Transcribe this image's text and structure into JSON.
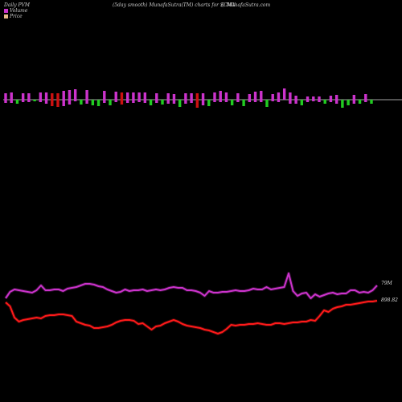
{
  "header": {
    "left": "Daily PVM",
    "center": "(5day smooth) MunafaSutra(TM) charts for SCMX",
    "right": "() MunafaSutra.com"
  },
  "legend": {
    "volume_label": "Volume",
    "price_label": "Price"
  },
  "colors": {
    "background": "#000000",
    "volume_legend": "#cc33cc",
    "price_legend": "#e6b98a",
    "bar_up": "#cc33cc",
    "bar_down": "#cc1111",
    "bar_green": "#22cc22",
    "volume_line": "#cc33cc",
    "price_line": "#ff1a1a",
    "baseline": "#dddddd"
  },
  "chart_data": {
    "type": "line",
    "end_labels": {
      "volume": "79M",
      "price": "898.82"
    },
    "bars": {
      "colors": [
        "m",
        "m",
        "g",
        "m",
        "m",
        "g",
        "m",
        "m",
        "r",
        "r",
        "m",
        "m",
        "m",
        "g",
        "m",
        "g",
        "g",
        "m",
        "g",
        "m",
        "r",
        "m",
        "m",
        "m",
        "m",
        "g",
        "m",
        "g",
        "m",
        "m",
        "g",
        "m",
        "m",
        "r",
        "m",
        "g",
        "m",
        "m",
        "m",
        "g",
        "m",
        "g",
        "m",
        "m",
        "m",
        "g",
        "m",
        "m",
        "m",
        "m",
        "m",
        "g",
        "m",
        "m",
        "m",
        "g",
        "m",
        "m",
        "g",
        "g",
        "m",
        "g",
        "m",
        "g"
      ],
      "up": [
        8,
        9,
        0,
        8,
        8,
        0,
        9,
        9,
        8,
        8,
        11,
        12,
        13,
        0,
        12,
        0,
        0,
        11,
        0,
        10,
        9,
        9,
        9,
        9,
        9,
        0,
        8,
        0,
        8,
        7,
        0,
        8,
        8,
        8,
        8,
        0,
        9,
        11,
        9,
        0,
        8,
        0,
        7,
        10,
        11,
        0,
        7,
        9,
        14,
        9,
        5,
        0,
        4,
        4,
        4,
        0,
        5,
        6,
        0,
        0,
        6,
        0,
        7,
        0
      ],
      "down": [
        4,
        4,
        5,
        3,
        3,
        2,
        3,
        5,
        8,
        9,
        8,
        6,
        2,
        6,
        5,
        7,
        8,
        4,
        7,
        3,
        6,
        4,
        4,
        3,
        4,
        7,
        4,
        6,
        5,
        5,
        9,
        5,
        4,
        10,
        7,
        8,
        3,
        3,
        3,
        7,
        3,
        8,
        3,
        3,
        3,
        9,
        2,
        3,
        0,
        5,
        5,
        7,
        3,
        2,
        3,
        5,
        3,
        5,
        10,
        7,
        5,
        5,
        3,
        5
      ]
    },
    "volume_line": [
      371,
      363,
      360,
      361,
      362,
      363,
      364,
      361,
      355,
      361,
      361,
      360,
      360,
      362,
      359,
      358,
      357,
      355,
      353,
      353,
      354,
      356,
      357,
      360,
      362,
      364,
      363,
      360,
      362,
      361,
      361,
      360,
      362,
      361,
      360,
      361,
      360,
      358,
      357,
      358,
      358,
      361,
      361,
      362,
      364,
      368,
      362,
      364,
      364,
      363,
      363,
      362,
      361,
      362,
      362,
      361,
      359,
      360,
      360,
      357,
      360,
      359,
      358,
      357,
      340,
      362,
      368,
      365,
      364,
      371,
      366,
      369,
      367,
      365,
      364,
      366,
      365,
      365,
      361,
      361,
      364,
      363,
      364,
      361,
      355
    ],
    "price_line": [
      376,
      381,
      395,
      400,
      398,
      397,
      396,
      395,
      396,
      393,
      392,
      392,
      391,
      391,
      392,
      393,
      400,
      402,
      404,
      405,
      408,
      408,
      407,
      406,
      404,
      401,
      399,
      398,
      398,
      399,
      403,
      402,
      406,
      410,
      406,
      405,
      402,
      400,
      398,
      400,
      403,
      405,
      406,
      407,
      408,
      410,
      411,
      413,
      415,
      413,
      409,
      404,
      405,
      404,
      404,
      403,
      403,
      402,
      403,
      404,
      404,
      402,
      402,
      403,
      402,
      401,
      401,
      400,
      400,
      398,
      399,
      393,
      386,
      388,
      384,
      382,
      381,
      379,
      379,
      378,
      377,
      376,
      375,
      375,
      374
    ]
  }
}
